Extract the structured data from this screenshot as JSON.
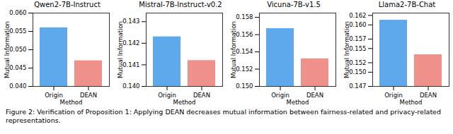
{
  "chart_data": [
    {
      "type": "bar",
      "title": "Qwen2-7B-Instruct",
      "x_label": "Method",
      "y_label": "Mutual Information",
      "categories": [
        "Origin",
        "DEAN"
      ],
      "values": [
        0.056,
        0.047
      ],
      "colors": [
        "#5ea8ec",
        "#f0908a"
      ],
      "ylim": [
        0.04,
        0.06
      ],
      "yticks": [
        {
          "value": 0.04,
          "label": "0.040"
        },
        {
          "value": 0.045,
          "label": "0.045"
        },
        {
          "value": 0.05,
          "label": "0.050"
        },
        {
          "value": 0.055,
          "label": "0.055"
        },
        {
          "value": 0.06,
          "label": "0.060"
        }
      ]
    },
    {
      "type": "bar",
      "title": "Mistral-7B-Instruct-v0.2",
      "x_label": "Method",
      "y_label": "Mutual Information",
      "categories": [
        "Origin",
        "DEAN"
      ],
      "values": [
        0.1423,
        0.1412
      ],
      "colors": [
        "#5ea8ec",
        "#f0908a"
      ],
      "ylim": [
        0.14,
        0.1434
      ],
      "yticks": [
        {
          "value": 0.14,
          "label": "0.140"
        },
        0.141,
        0.142,
        0.143
      ]
    },
    {
      "type": "bar",
      "title": "Vicuna-7B-v1.5",
      "x_label": "Method",
      "y_label": "Mutual Information",
      "categories": [
        "Origin",
        "DEAN"
      ],
      "values": [
        0.1567,
        0.1532
      ],
      "colors": [
        "#5ea8ec",
        "#f0908a"
      ],
      "ylim": [
        0.15,
        0.1585
      ],
      "yticks": [
        {
          "value": 0.15,
          "label": "0.150"
        },
        0.152,
        0.154,
        0.156,
        0.158
      ]
    },
    {
      "type": "bar",
      "title": "Llama2-7B-Chat",
      "x_label": "Method",
      "y_label": "Mutual Information",
      "categories": [
        "Origin",
        "DEAN"
      ],
      "values": [
        0.161,
        0.1537
      ],
      "colors": [
        "#5ea8ec",
        "#f0908a"
      ],
      "ylim": [
        0.147,
        0.1625
      ],
      "yticks": [
        0.147,
        {
          "value": 0.15,
          "label": "0.150"
        },
        0.152,
        0.155,
        0.157,
        {
          "value": 0.16,
          "label": "0.160"
        },
        0.162
      ]
    }
  ],
  "caption": "Figure 2: Verification of Proposition 1: Applying DEAN decreases mutual information between fairness-related and privacy-related representations."
}
